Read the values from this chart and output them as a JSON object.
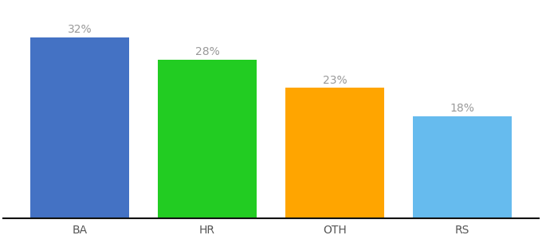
{
  "categories": [
    "BA",
    "HR",
    "OTH",
    "RS"
  ],
  "values": [
    32,
    28,
    23,
    18
  ],
  "bar_colors": [
    "#4472c4",
    "#22cc22",
    "#ffa500",
    "#66bbee"
  ],
  "value_labels": [
    "32%",
    "28%",
    "23%",
    "18%"
  ],
  "ylim": [
    0,
    38
  ],
  "background_color": "#ffffff",
  "label_fontsize": 10,
  "tick_fontsize": 10,
  "bar_width": 0.78
}
